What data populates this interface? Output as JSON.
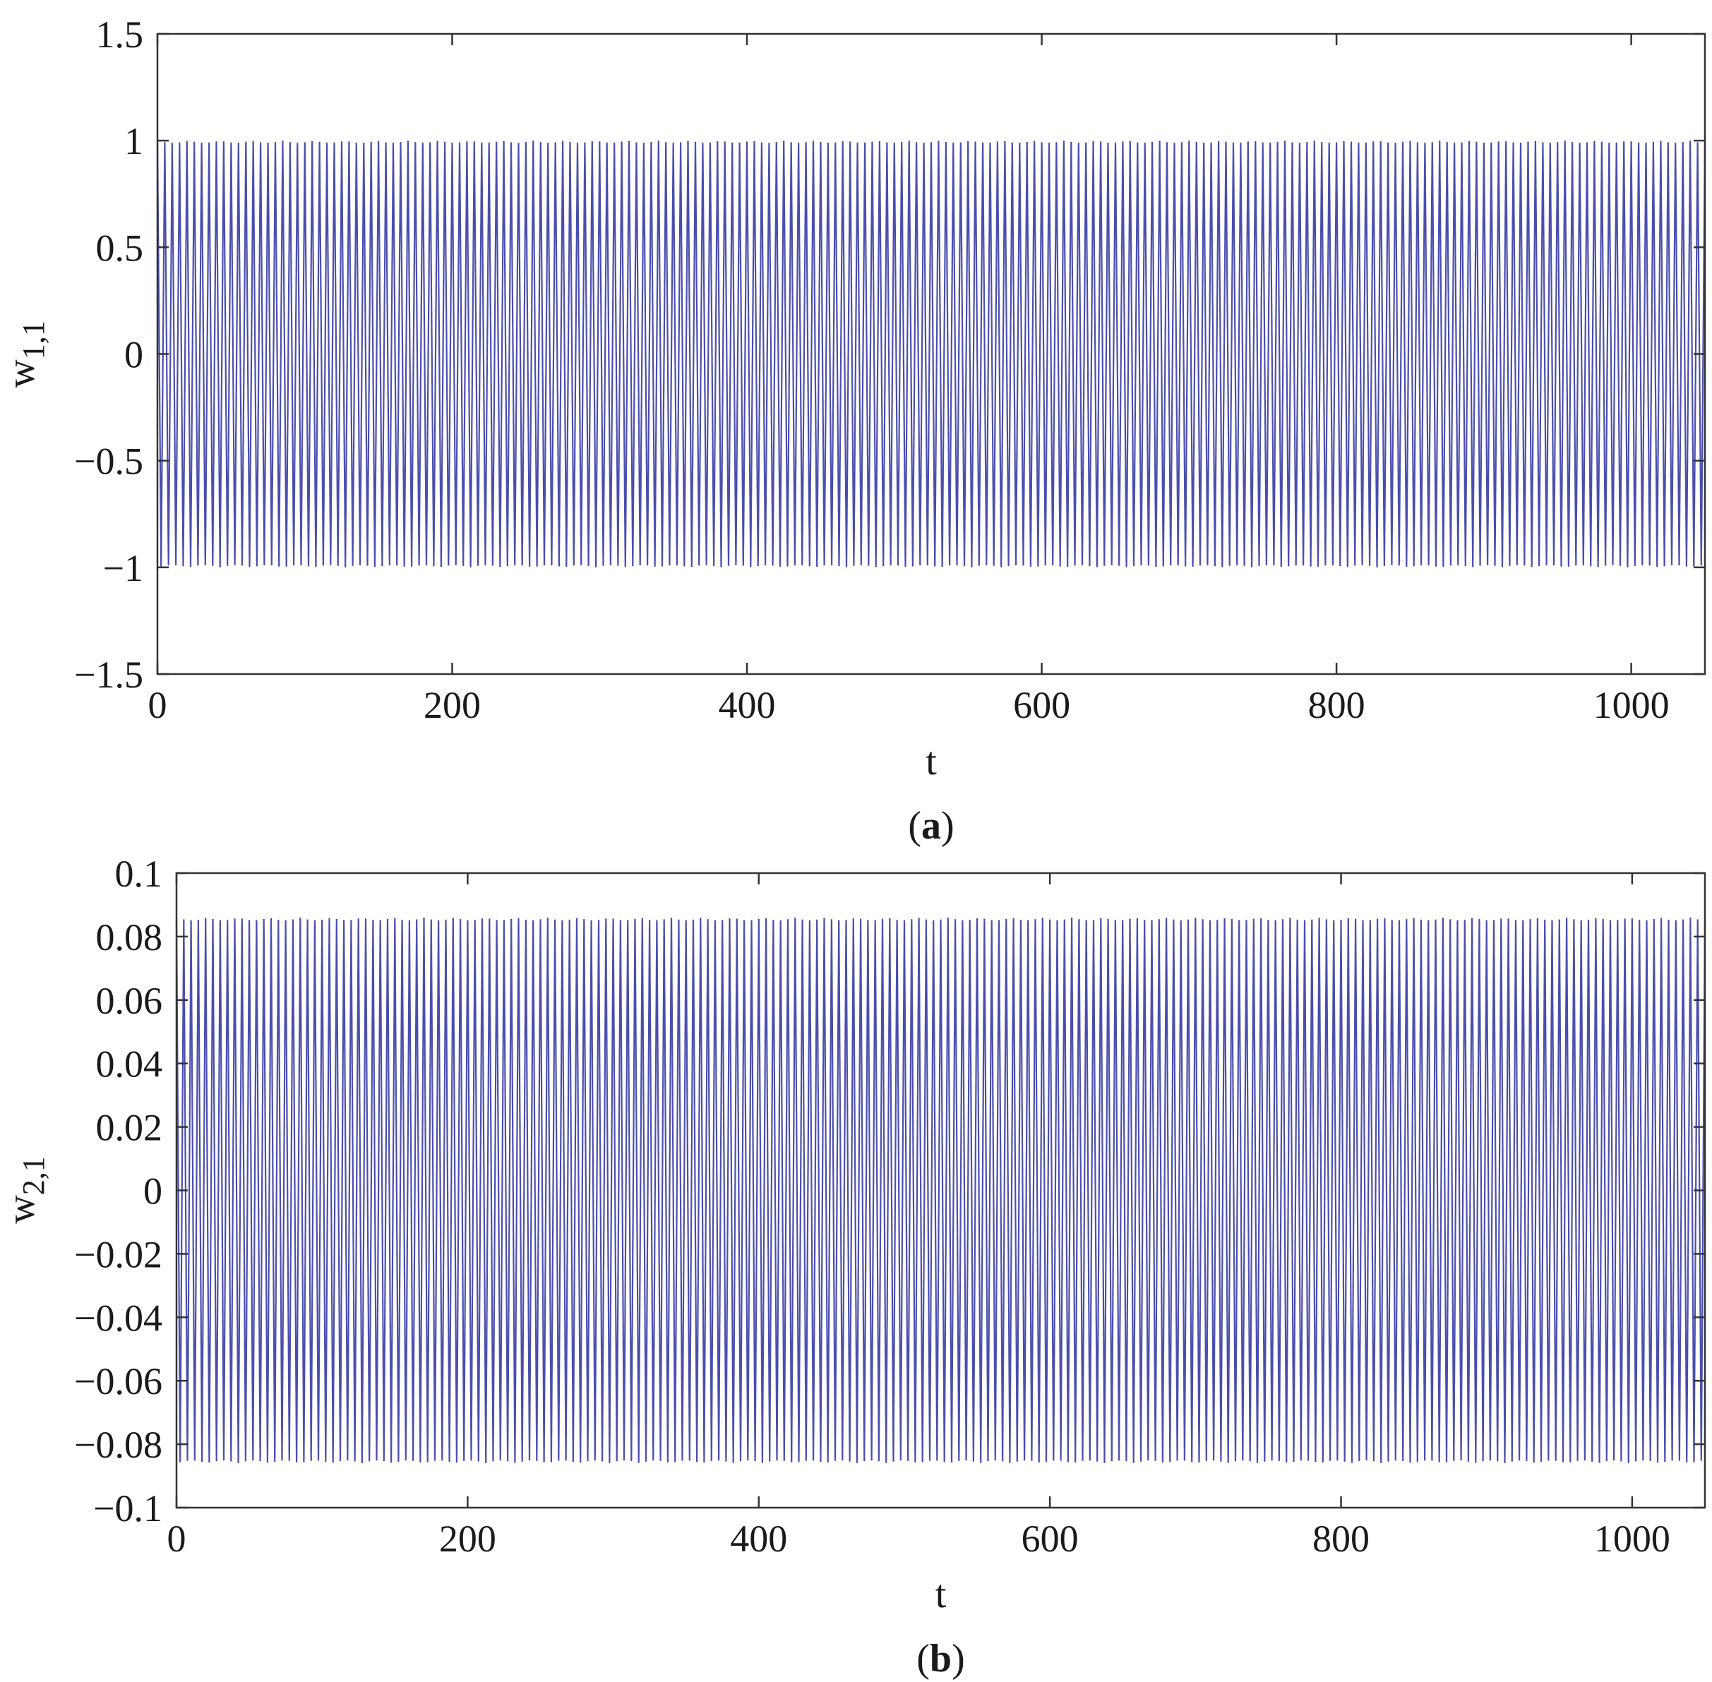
{
  "colors": {
    "series": "#2b2fa0",
    "axis": "#333333",
    "background": "#ffffff"
  },
  "chart_data": [
    {
      "type": "line",
      "panel_label": "a",
      "xlabel": "t",
      "ylabel_base": "w",
      "ylabel_sub": "1,1",
      "xlim": [
        0,
        1050
      ],
      "ylim": [
        -1.5,
        1.5
      ],
      "xticks": [
        0,
        200,
        400,
        600,
        800,
        1000
      ],
      "xtick_labels": [
        "0",
        "200",
        "400",
        "600",
        "800",
        "1000"
      ],
      "yticks": [
        -1.5,
        -1,
        -0.5,
        0,
        0.5,
        1,
        1.5
      ],
      "ytick_labels": [
        "−1.5",
        "−1",
        "−0.5",
        "0",
        "0.5",
        "1",
        "1.5"
      ],
      "series": [
        {
          "amplitude": 1.0,
          "period": 5.0,
          "t_start": 0,
          "t_end": 1050
        }
      ]
    },
    {
      "type": "line",
      "panel_label": "b",
      "xlabel": "t",
      "ylabel_base": "w",
      "ylabel_sub": "2,1",
      "xlim": [
        0,
        1050
      ],
      "ylim": [
        -0.1,
        0.1
      ],
      "xticks": [
        0,
        200,
        400,
        600,
        800,
        1000
      ],
      "xtick_labels": [
        "0",
        "200",
        "400",
        "600",
        "800",
        "1000"
      ],
      "yticks": [
        -0.1,
        -0.08,
        -0.06,
        -0.04,
        -0.02,
        0,
        0.02,
        0.04,
        0.06,
        0.08,
        0.1
      ],
      "ytick_labels": [
        "−0.1",
        "−0.08",
        "−0.06",
        "−0.04",
        "−0.02",
        "0",
        "0.02",
        "0.04",
        "0.06",
        "0.08",
        "0.1"
      ],
      "series": [
        {
          "amplitude": 0.086,
          "period": 5.0,
          "t_start": 0,
          "t_end": 1050
        }
      ]
    }
  ]
}
